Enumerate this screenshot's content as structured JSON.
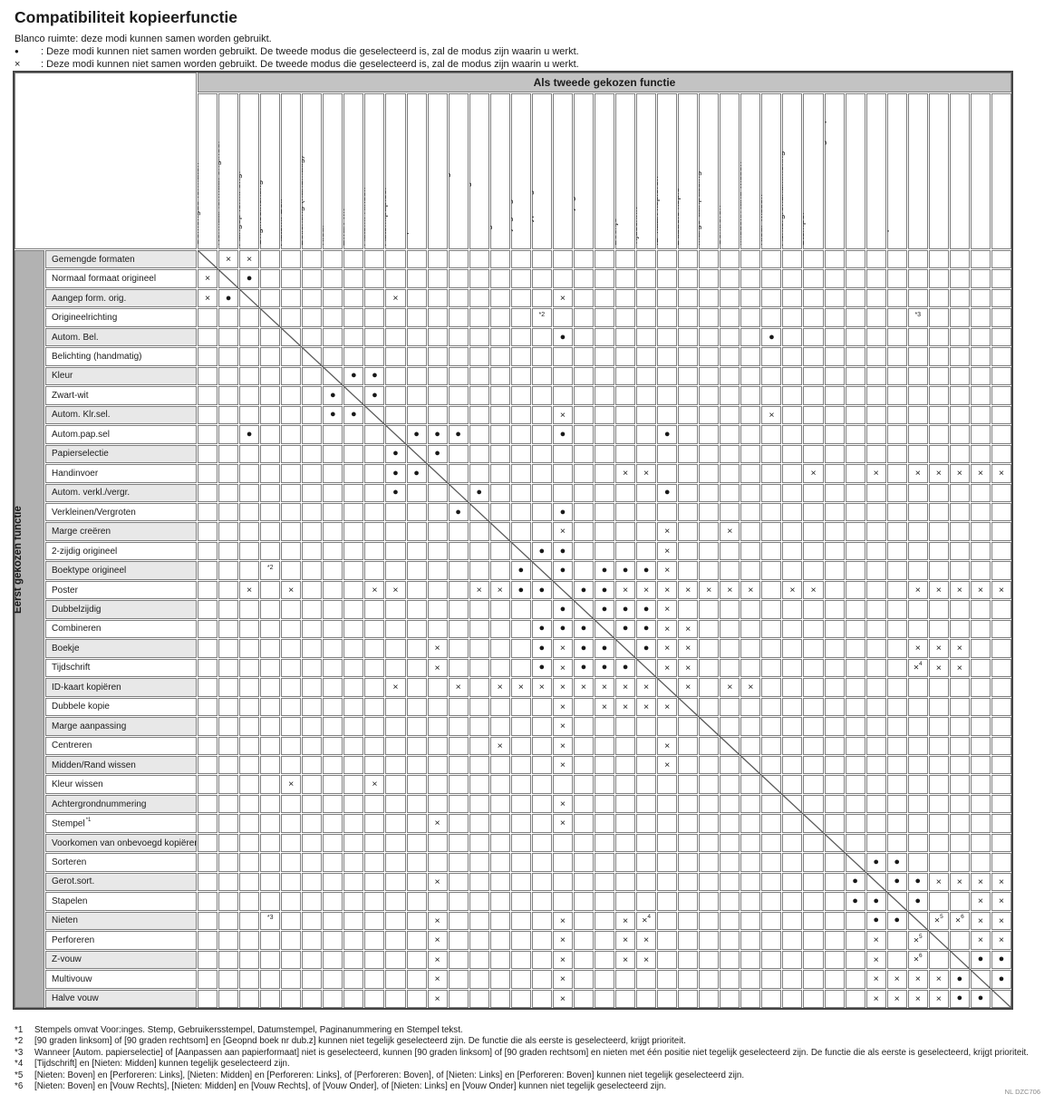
{
  "title": "Compatibiliteit kopieerfunctie",
  "doc_code": "NL DZC706",
  "colors": {
    "top_band": "#c3c3c3",
    "side_band": "#b2b2b2",
    "row_alt": "#e8e8e8",
    "cell_border": "#7e7e7e",
    "frame": "#444444",
    "diagonal": "#5a5a5a"
  },
  "legend": [
    {
      "symbol": "",
      "text": "Blanco ruimte: deze modi kunnen samen worden gebruikt."
    },
    {
      "symbol": "●",
      "text": ": Deze modi kunnen niet samen worden gebruikt. De tweede modus die geselecteerd is, zal de modus zijn waarin u werkt."
    },
    {
      "symbol": "×",
      "text": ": Deze modi kunnen niet samen worden gebruikt. De tweede modus die geselecteerd is, zal de modus zijn waarin u werkt."
    }
  ],
  "matrix": {
    "second_axis_label": "Als tweede gekozen functie",
    "first_axis_label": "Eerst gekozen functie",
    "functions": [
      "Gemengde formaten",
      "Normaal formaat origineel",
      "Aangep form. orig.",
      "Origineelrichting",
      "Autom. Bel.",
      "Belichting (handmatig)",
      "Kleur",
      "Zwart-wit",
      "Autom. Klr.sel.",
      "Autom.pap.sel",
      "Papierselectie",
      "Handinvoer",
      "Autom. verkl./vergr.",
      "Verkleinen/Vergroten",
      "Marge creëren",
      "2-zijdig origineel",
      "Boektype origineel",
      "Poster",
      "Dubbelzijdig",
      "Combineren",
      "Boekje",
      "Tijdschrift",
      "ID-kaart kopiëren",
      "Dubbele kopie",
      "Marge aanpassing",
      "Centreren",
      "Midden/Rand wissen",
      "Kleur wissen",
      "Achtergrondnummering",
      "Stempel",
      "Voorkomen van onbevoegd kopiëren",
      "Sorteren",
      "Gerot.sort.",
      "Stapelen",
      "Nieten",
      "Perforeren",
      "Z-vouw",
      "Multivouw",
      "Halve vouw"
    ],
    "sup_markers": {
      "30": "*1"
    },
    "cells": [
      [
        [
          2,
          "x"
        ],
        [
          3,
          "x"
        ]
      ],
      [
        [
          1,
          "x"
        ],
        [
          3,
          "dot"
        ]
      ],
      [
        [
          1,
          "x"
        ],
        [
          2,
          "dot"
        ],
        [
          10,
          "x"
        ],
        [
          18,
          "x"
        ]
      ],
      [
        [
          17,
          "*2"
        ],
        [
          35,
          "*3"
        ]
      ],
      [
        [
          18,
          "dot"
        ],
        [
          28,
          "dot"
        ]
      ],
      [],
      [
        [
          8,
          "dot"
        ],
        [
          9,
          "dot"
        ]
      ],
      [
        [
          7,
          "dot"
        ],
        [
          9,
          "dot"
        ]
      ],
      [
        [
          7,
          "dot"
        ],
        [
          8,
          "dot"
        ],
        [
          18,
          "x"
        ],
        [
          28,
          "x"
        ]
      ],
      [
        [
          3,
          "dot"
        ],
        [
          11,
          "dot"
        ],
        [
          12,
          "dot"
        ],
        [
          13,
          "dot"
        ],
        [
          18,
          "dot"
        ],
        [
          23,
          "dot"
        ]
      ],
      [
        [
          10,
          "dot"
        ],
        [
          12,
          "dot"
        ]
      ],
      [
        [
          10,
          "dot"
        ],
        [
          11,
          "dot"
        ],
        [
          21,
          "x"
        ],
        [
          22,
          "x"
        ],
        [
          30,
          "x"
        ],
        [
          33,
          "x"
        ],
        [
          35,
          "x"
        ],
        [
          36,
          "x"
        ],
        [
          37,
          "x"
        ],
        [
          38,
          "x"
        ],
        [
          39,
          "x"
        ]
      ],
      [
        [
          10,
          "dot"
        ],
        [
          14,
          "dot"
        ],
        [
          23,
          "dot"
        ]
      ],
      [
        [
          13,
          "dot"
        ],
        [
          18,
          "dot"
        ]
      ],
      [
        [
          18,
          "x"
        ],
        [
          23,
          "x"
        ],
        [
          26,
          "x"
        ]
      ],
      [
        [
          17,
          "dot"
        ],
        [
          18,
          "dot"
        ],
        [
          23,
          "x"
        ]
      ],
      [
        [
          4,
          "*2"
        ],
        [
          16,
          "dot"
        ],
        [
          18,
          "dot"
        ],
        [
          20,
          "dot"
        ],
        [
          21,
          "dot"
        ],
        [
          22,
          "dot"
        ],
        [
          23,
          "x"
        ]
      ],
      [
        [
          3,
          "x"
        ],
        [
          5,
          "x"
        ],
        [
          9,
          "x"
        ],
        [
          10,
          "x"
        ],
        [
          14,
          "x"
        ],
        [
          15,
          "x"
        ],
        [
          16,
          "dot"
        ],
        [
          17,
          "dot"
        ],
        [
          19,
          "dot"
        ],
        [
          20,
          "dot"
        ],
        [
          21,
          "x"
        ],
        [
          22,
          "x"
        ],
        [
          23,
          "x"
        ],
        [
          24,
          "x"
        ],
        [
          25,
          "x"
        ],
        [
          26,
          "x"
        ],
        [
          27,
          "x"
        ],
        [
          29,
          "x"
        ],
        [
          30,
          "x"
        ],
        [
          35,
          "x"
        ],
        [
          36,
          "x"
        ],
        [
          37,
          "x"
        ],
        [
          38,
          "x"
        ],
        [
          39,
          "x"
        ]
      ],
      [
        [
          18,
          "dot"
        ],
        [
          20,
          "dot"
        ],
        [
          21,
          "dot"
        ],
        [
          22,
          "dot"
        ],
        [
          23,
          "x"
        ]
      ],
      [
        [
          17,
          "dot"
        ],
        [
          18,
          "dot"
        ],
        [
          19,
          "dot"
        ],
        [
          21,
          "dot"
        ],
        [
          22,
          "dot"
        ],
        [
          23,
          "x"
        ],
        [
          24,
          "x"
        ]
      ],
      [
        [
          12,
          "x"
        ],
        [
          17,
          "dot"
        ],
        [
          18,
          "x"
        ],
        [
          19,
          "dot"
        ],
        [
          20,
          "dot"
        ],
        [
          22,
          "dot"
        ],
        [
          23,
          "x"
        ],
        [
          24,
          "x"
        ],
        [
          35,
          "x"
        ],
        [
          36,
          "x"
        ],
        [
          37,
          "x"
        ]
      ],
      [
        [
          12,
          "x"
        ],
        [
          17,
          "dot"
        ],
        [
          18,
          "x"
        ],
        [
          19,
          "dot"
        ],
        [
          20,
          "dot"
        ],
        [
          21,
          "dot"
        ],
        [
          23,
          "x"
        ],
        [
          24,
          "x"
        ],
        [
          35,
          "x*4"
        ],
        [
          36,
          "x"
        ],
        [
          37,
          "x"
        ]
      ],
      [
        [
          10,
          "x"
        ],
        [
          13,
          "x"
        ],
        [
          15,
          "x"
        ],
        [
          16,
          "x"
        ],
        [
          17,
          "x"
        ],
        [
          18,
          "x"
        ],
        [
          19,
          "x"
        ],
        [
          20,
          "x"
        ],
        [
          21,
          "x"
        ],
        [
          22,
          "x"
        ],
        [
          24,
          "x"
        ],
        [
          26,
          "x"
        ],
        [
          27,
          "x"
        ]
      ],
      [
        [
          18,
          "x"
        ],
        [
          20,
          "x"
        ],
        [
          21,
          "x"
        ],
        [
          22,
          "x"
        ],
        [
          23,
          "x"
        ]
      ],
      [
        [
          18,
          "x"
        ]
      ],
      [
        [
          15,
          "x"
        ],
        [
          18,
          "x"
        ],
        [
          23,
          "x"
        ]
      ],
      [
        [
          18,
          "x"
        ],
        [
          23,
          "x"
        ]
      ],
      [
        [
          5,
          "x"
        ],
        [
          9,
          "x"
        ]
      ],
      [
        [
          18,
          "x"
        ]
      ],
      [
        [
          12,
          "x"
        ],
        [
          18,
          "x"
        ]
      ],
      [],
      [
        [
          33,
          "dot"
        ],
        [
          34,
          "dot"
        ]
      ],
      [
        [
          12,
          "x"
        ],
        [
          32,
          "dot"
        ],
        [
          34,
          "dot"
        ],
        [
          35,
          "dot"
        ],
        [
          36,
          "x"
        ],
        [
          37,
          "x"
        ],
        [
          38,
          "x"
        ],
        [
          39,
          "x"
        ]
      ],
      [
        [
          32,
          "dot"
        ],
        [
          33,
          "dot"
        ],
        [
          35,
          "dot"
        ],
        [
          38,
          "x"
        ],
        [
          39,
          "x"
        ]
      ],
      [
        [
          4,
          "*3"
        ],
        [
          12,
          "x"
        ],
        [
          18,
          "x"
        ],
        [
          21,
          "x"
        ],
        [
          22,
          "x*4"
        ],
        [
          33,
          "dot"
        ],
        [
          34,
          "dot"
        ],
        [
          36,
          "x*5"
        ],
        [
          37,
          "x*6"
        ],
        [
          38,
          "x"
        ],
        [
          39,
          "x"
        ]
      ],
      [
        [
          12,
          "x"
        ],
        [
          18,
          "x"
        ],
        [
          21,
          "x"
        ],
        [
          22,
          "x"
        ],
        [
          33,
          "x"
        ],
        [
          35,
          "x*5"
        ],
        [
          38,
          "x"
        ],
        [
          39,
          "x"
        ]
      ],
      [
        [
          12,
          "x"
        ],
        [
          18,
          "x"
        ],
        [
          21,
          "x"
        ],
        [
          22,
          "x"
        ],
        [
          33,
          "x"
        ],
        [
          35,
          "x*6"
        ],
        [
          38,
          "dot"
        ],
        [
          39,
          "dot"
        ]
      ],
      [
        [
          12,
          "x"
        ],
        [
          18,
          "x"
        ],
        [
          33,
          "x"
        ],
        [
          34,
          "x"
        ],
        [
          35,
          "x"
        ],
        [
          36,
          "x"
        ],
        [
          37,
          "dot"
        ],
        [
          39,
          "dot"
        ]
      ],
      [
        [
          12,
          "x"
        ],
        [
          18,
          "x"
        ],
        [
          33,
          "x"
        ],
        [
          34,
          "x"
        ],
        [
          35,
          "x"
        ],
        [
          36,
          "x"
        ],
        [
          37,
          "dot"
        ],
        [
          38,
          "dot"
        ]
      ]
    ]
  },
  "footnotes": [
    {
      "marker": "*1",
      "text": "Stempels omvat Voor:inges. Stemp, Gebruikersstempel, Datumstempel, Paginanummering en Stempel tekst."
    },
    {
      "marker": "*2",
      "text": "[90 graden linksom] of [90 graden rechtsom] en [Geopnd boek nr dub.z] kunnen niet tegelijk geselecteerd zijn. De functie die als eerste is geselecteerd, krijgt prioriteit."
    },
    {
      "marker": "*3",
      "text": "Wanneer [Autom. papierselectie] of [Aanpassen aan papierformaat] niet is geselecteerd, kunnen [90 graden linksom] of [90 graden rechtsom] en nieten met één positie niet tegelijk geselecteerd zijn. De functie die als eerste is geselecteerd, krijgt prioriteit."
    },
    {
      "marker": "*4",
      "text": "[Tijdschrift] en [Nieten: Midden] kunnen tegelijk geselecteerd zijn."
    },
    {
      "marker": "*5",
      "text": "[Nieten: Boven] en [Perforeren: Links], [Nieten: Midden] en [Perforeren: Links], of [Perforeren: Boven], of [Nieten: Links] en [Perforeren: Boven] kunnen niet tegelijk geselecteerd zijn."
    },
    {
      "marker": "*6",
      "text": "[Nieten: Boven] en [Vouw Rechts], [Nieten: Midden] en [Vouw Rechts], of [Vouw Onder], of [Nieten: Links] en [Vouw Onder] kunnen niet tegelijk geselecteerd zijn."
    }
  ]
}
